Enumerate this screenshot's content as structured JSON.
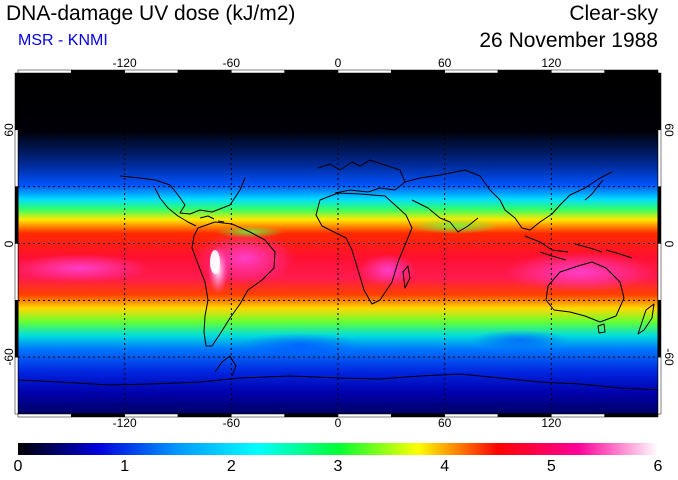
{
  "header": {
    "title": "DNA-damage UV dose (kJ/m2)",
    "subtitle": "MSR - KNMI",
    "condition": "Clear-sky",
    "date": "26 November 1988"
  },
  "map": {
    "lon_range": [
      -180,
      180
    ],
    "lat_range": [
      -90,
      90
    ],
    "gridlines_lon": [
      -120,
      -60,
      0,
      60,
      120
    ],
    "gridlines_lat": [
      -60,
      -30,
      0,
      30,
      60
    ],
    "lon_tick_labels": [
      "-120",
      "-60",
      "0",
      "60",
      "120"
    ],
    "lat_tick_labels": [
      "60",
      "0",
      "-60"
    ]
  },
  "colorbar": {
    "min": 0,
    "max": 6,
    "ticks": [
      "0",
      "1",
      "2",
      "3",
      "4",
      "5",
      "6"
    ],
    "colors": [
      "#000000",
      "#0000dd",
      "#0099ff",
      "#00ffff",
      "#00ff33",
      "#ffff00",
      "#ff0000",
      "#ff0099",
      "#ffffff"
    ]
  }
}
